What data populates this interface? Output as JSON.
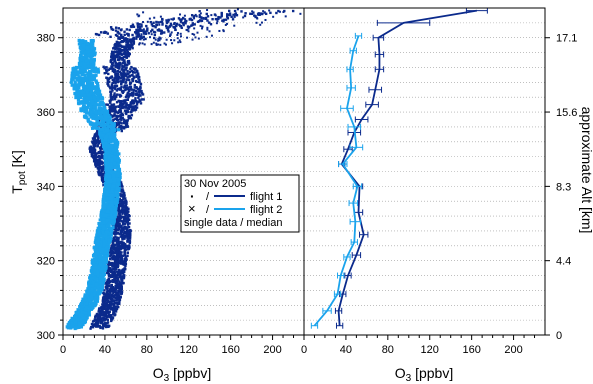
{
  "chart_data": [
    {
      "type": "scatter",
      "panel": "left",
      "xlabel": "O3 [ppbv]",
      "ylabel": "Tpot [K]",
      "xlim": [
        0,
        230
      ],
      "ylim": [
        300,
        388
      ],
      "xticks": [
        0,
        40,
        80,
        120,
        160,
        200
      ],
      "yticks": [
        300,
        320,
        340,
        360,
        380
      ],
      "grid": "horizontal dotted",
      "legend": {
        "title": "30 Nov 2005",
        "entries": [
          {
            "marker": "·",
            "sep": "/",
            "label": "flight 1",
            "color": "#0b2a8c"
          },
          {
            "marker": "×",
            "sep": "/",
            "label": "flight 2",
            "color": "#1aa3ec"
          }
        ],
        "footer": "single data / median"
      },
      "series": [
        {
          "name": "flight 1",
          "color": "#0b2a8c",
          "profile": [
            [
              302,
              35
            ],
            [
              305,
              40
            ],
            [
              308,
              45
            ],
            [
              312,
              48
            ],
            [
              316,
              50
            ],
            [
              320,
              52
            ],
            [
              324,
              55
            ],
            [
              328,
              56
            ],
            [
              332,
              55
            ],
            [
              336,
              52
            ],
            [
              340,
              48
            ],
            [
              344,
              42
            ],
            [
              347,
              38
            ],
            [
              350,
              34
            ],
            [
              353,
              38
            ],
            [
              356,
              45
            ],
            [
              360,
              52
            ],
            [
              364,
              62
            ],
            [
              368,
              58
            ],
            [
              372,
              54
            ],
            [
              376,
              55
            ],
            [
              380,
              62
            ],
            [
              383,
              85
            ],
            [
              385,
              130
            ],
            [
              387,
              190
            ]
          ]
        },
        {
          "name": "flight 2",
          "color": "#1aa3ec",
          "profile": [
            [
              302,
              10
            ],
            [
              305,
              17
            ],
            [
              308,
              24
            ],
            [
              312,
              30
            ],
            [
              316,
              33
            ],
            [
              320,
              35
            ],
            [
              324,
              37
            ],
            [
              328,
              40
            ],
            [
              332,
              43
            ],
            [
              336,
              45
            ],
            [
              340,
              47
            ],
            [
              344,
              48
            ],
            [
              348,
              47
            ],
            [
              352,
              45
            ],
            [
              356,
              40
            ],
            [
              360,
              30
            ],
            [
              364,
              25
            ],
            [
              368,
              20
            ],
            [
              372,
              22
            ],
            [
              376,
              24
            ],
            [
              379,
              22
            ]
          ]
        }
      ]
    },
    {
      "type": "line",
      "panel": "right",
      "xlabel": "O3 [ppbv]",
      "ylabel": "approximate Alt [km]",
      "xlim": [
        0,
        230
      ],
      "ylim": [
        300,
        388
      ],
      "xticks": [
        0,
        40,
        80,
        120,
        160,
        200
      ],
      "altitude_ticks": [
        {
          "tpot": 300,
          "label": "0"
        },
        {
          "tpot": 320,
          "label": "4.4"
        },
        {
          "tpot": 340,
          "label": "8.3"
        },
        {
          "tpot": 360,
          "label": "15.6"
        },
        {
          "tpot": 380,
          "label": "17.1"
        }
      ],
      "grid": "horizontal dotted",
      "series": [
        {
          "name": "flight 1",
          "color": "#0b2a8c",
          "points": [
            {
              "y": 302.5,
              "x": 34,
              "err": 3
            },
            {
              "y": 306.5,
              "x": 33,
              "err": 3
            },
            {
              "y": 311,
              "x": 37,
              "err": 3
            },
            {
              "y": 316,
              "x": 42,
              "err": 3
            },
            {
              "y": 321.5,
              "x": 50,
              "err": 4
            },
            {
              "y": 327,
              "x": 57,
              "err": 4
            },
            {
              "y": 333,
              "x": 52,
              "err": 4
            },
            {
              "y": 340,
              "x": 53,
              "err": 3
            },
            {
              "y": 346,
              "x": 36,
              "err": 3
            },
            {
              "y": 350,
              "x": 42,
              "err": 4
            },
            {
              "y": 354.5,
              "x": 48,
              "err": 6
            },
            {
              "y": 358,
              "x": 55,
              "err": 6
            },
            {
              "y": 362,
              "x": 65,
              "err": 6
            },
            {
              "y": 366,
              "x": 68,
              "err": 6
            },
            {
              "y": 371.5,
              "x": 72,
              "err": 4
            },
            {
              "y": 375.5,
              "x": 72,
              "err": 4
            },
            {
              "y": 380,
              "x": 71,
              "err": 5
            },
            {
              "y": 384,
              "x": 95,
              "err": 25
            },
            {
              "y": 387.3,
              "x": 165,
              "err": 10
            }
          ]
        },
        {
          "name": "flight 2",
          "color": "#1aa3ec",
          "points": [
            {
              "y": 302.5,
              "x": 10,
              "err": 3
            },
            {
              "y": 306.5,
              "x": 22,
              "err": 4
            },
            {
              "y": 311,
              "x": 32,
              "err": 3
            },
            {
              "y": 316,
              "x": 35,
              "err": 3
            },
            {
              "y": 321,
              "x": 41,
              "err": 3
            },
            {
              "y": 325,
              "x": 48,
              "err": 3
            },
            {
              "y": 330.5,
              "x": 49,
              "err": 5
            },
            {
              "y": 335.5,
              "x": 47,
              "err": 4
            },
            {
              "y": 340,
              "x": 51,
              "err": 4
            },
            {
              "y": 346,
              "x": 37,
              "err": 4
            },
            {
              "y": 350.5,
              "x": 50,
              "err": 6
            },
            {
              "y": 356,
              "x": 48,
              "err": 6
            },
            {
              "y": 361,
              "x": 41,
              "err": 6
            },
            {
              "y": 366.5,
              "x": 45,
              "err": 4
            },
            {
              "y": 371.5,
              "x": 44,
              "err": 3
            },
            {
              "y": 376.5,
              "x": 47,
              "err": 3
            },
            {
              "y": 380.5,
              "x": 52,
              "err": 3
            }
          ]
        }
      ]
    }
  ]
}
